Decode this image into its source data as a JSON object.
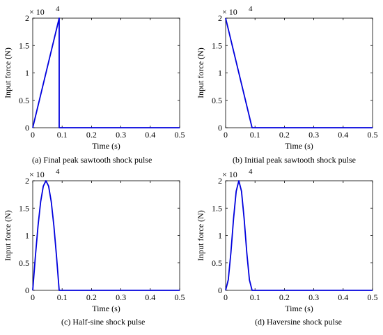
{
  "chart_data": [
    {
      "type": "line",
      "caption": "(a)  Final peak sawtooth shock pulse",
      "xlabel": "Time (s)",
      "ylabel": "Input force (N)",
      "multiplier": "× 10",
      "exponent": "4",
      "xlim": [
        0,
        0.5
      ],
      "ylim": [
        0,
        2
      ],
      "xticks": [
        0,
        0.1,
        0.2,
        0.3,
        0.4,
        0.5
      ],
      "xtick_labels": [
        "0",
        "0.1",
        "0.2",
        "0.3",
        "0.4",
        "0.5"
      ],
      "yticks": [
        0,
        0.5,
        1,
        1.5,
        2
      ],
      "ytick_labels": [
        "0",
        "0.5",
        "1",
        "1.5",
        "2"
      ],
      "grid": false,
      "series": [
        {
          "color": "#0000dd",
          "x": [
            0,
            0.09,
            0.09,
            0.5
          ],
          "y": [
            0,
            2,
            0,
            0
          ]
        }
      ]
    },
    {
      "type": "line",
      "caption": "(b)  Initial peak sawtooth shock pulse",
      "xlabel": "Time (s)",
      "ylabel": "Input force (N)",
      "multiplier": "× 10",
      "exponent": "4",
      "xlim": [
        0,
        0.5
      ],
      "ylim": [
        0,
        2
      ],
      "xticks": [
        0,
        0.1,
        0.2,
        0.3,
        0.4,
        0.5
      ],
      "xtick_labels": [
        "0",
        "0.1",
        "0.2",
        "0.3",
        "0.4",
        "0.5"
      ],
      "yticks": [
        0,
        0.5,
        1,
        1.5,
        2
      ],
      "ytick_labels": [
        "0",
        "0.5",
        "1",
        "1.5",
        "2"
      ],
      "grid": false,
      "series": [
        {
          "color": "#0000dd",
          "x": [
            0,
            0.09,
            0.5
          ],
          "y": [
            2,
            0,
            0
          ]
        }
      ]
    },
    {
      "type": "line",
      "caption": "(c)  Half-sine shock pulse",
      "xlabel": "Time (s)",
      "ylabel": "Input force (N)",
      "multiplier": "× 10",
      "exponent": "4",
      "xlim": [
        0,
        0.5
      ],
      "ylim": [
        0,
        2
      ],
      "xticks": [
        0,
        0.1,
        0.2,
        0.3,
        0.4,
        0.5
      ],
      "xtick_labels": [
        "0",
        "0.1",
        "0.2",
        "0.3",
        "0.4",
        "0.5"
      ],
      "yticks": [
        0,
        0.5,
        1,
        1.5,
        2
      ],
      "ytick_labels": [
        "0",
        "0.5",
        "1",
        "1.5",
        "2"
      ],
      "grid": false,
      "series": [
        {
          "color": "#0000dd",
          "x": [
            0,
            0.009,
            0.018,
            0.027,
            0.036,
            0.045,
            0.054,
            0.063,
            0.072,
            0.081,
            0.09,
            0.5
          ],
          "y": [
            0,
            0.618,
            1.176,
            1.618,
            1.902,
            2,
            1.902,
            1.618,
            1.176,
            0.618,
            0,
            0
          ]
        }
      ]
    },
    {
      "type": "line",
      "caption": "(d)  Haversine shock pulse",
      "xlabel": "Time (s)",
      "ylabel": "Input force (N)",
      "multiplier": "× 10",
      "exponent": "4",
      "xlim": [
        0,
        0.5
      ],
      "ylim": [
        0,
        2
      ],
      "xticks": [
        0,
        0.1,
        0.2,
        0.3,
        0.4,
        0.5
      ],
      "xtick_labels": [
        "0",
        "0.1",
        "0.2",
        "0.3",
        "0.4",
        "0.5"
      ],
      "yticks": [
        0,
        0.5,
        1,
        1.5,
        2
      ],
      "ytick_labels": [
        "0",
        "0.5",
        "1",
        "1.5",
        "2"
      ],
      "grid": false,
      "series": [
        {
          "color": "#0000dd",
          "x": [
            0,
            0.009,
            0.018,
            0.027,
            0.036,
            0.045,
            0.054,
            0.063,
            0.072,
            0.081,
            0.09,
            0.5
          ],
          "y": [
            0,
            0.191,
            0.691,
            1.309,
            1.809,
            2,
            1.809,
            1.309,
            0.691,
            0.191,
            0,
            0
          ]
        }
      ]
    }
  ]
}
